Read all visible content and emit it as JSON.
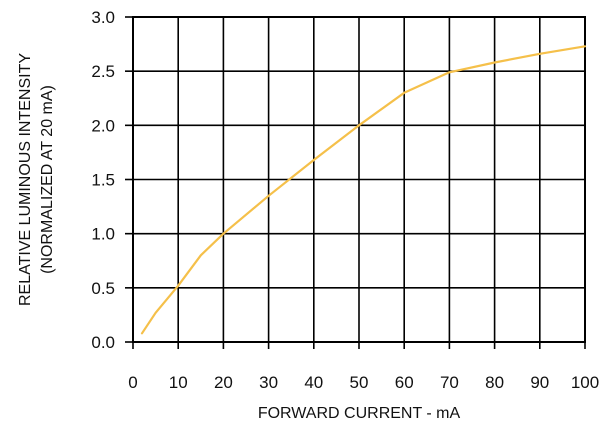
{
  "chart_data": {
    "type": "line",
    "xlabel": "FORWARD CURRENT - mA",
    "ylabel_line1": "RELATIVE LUMINOUS INTENSITY",
    "ylabel_line2": "(NORMALIZED AT 20 mA)",
    "xlim": [
      0,
      100
    ],
    "ylim": [
      0,
      3.0
    ],
    "x_ticks": [
      0,
      10,
      20,
      30,
      40,
      50,
      60,
      70,
      80,
      90,
      100
    ],
    "y_ticks": [
      0.0,
      0.5,
      1.0,
      1.5,
      2.0,
      2.5,
      3.0
    ],
    "x_tick_labels": [
      "0",
      "10",
      "20",
      "30",
      "40",
      "50",
      "60",
      "70",
      "80",
      "90",
      "100"
    ],
    "y_tick_labels": [
      "0.0",
      "0.5",
      "1.0",
      "1.5",
      "2.0",
      "2.5",
      "3.0"
    ],
    "grid": true,
    "series": [
      {
        "color": "#f5c04a",
        "x": [
          2,
          5,
          10,
          15,
          20,
          30,
          40,
          50,
          60,
          70,
          80,
          90,
          100
        ],
        "y": [
          0.08,
          0.27,
          0.52,
          0.8,
          1.0,
          1.35,
          1.68,
          2.0,
          2.3,
          2.49,
          2.58,
          2.66,
          2.73
        ]
      }
    ]
  }
}
